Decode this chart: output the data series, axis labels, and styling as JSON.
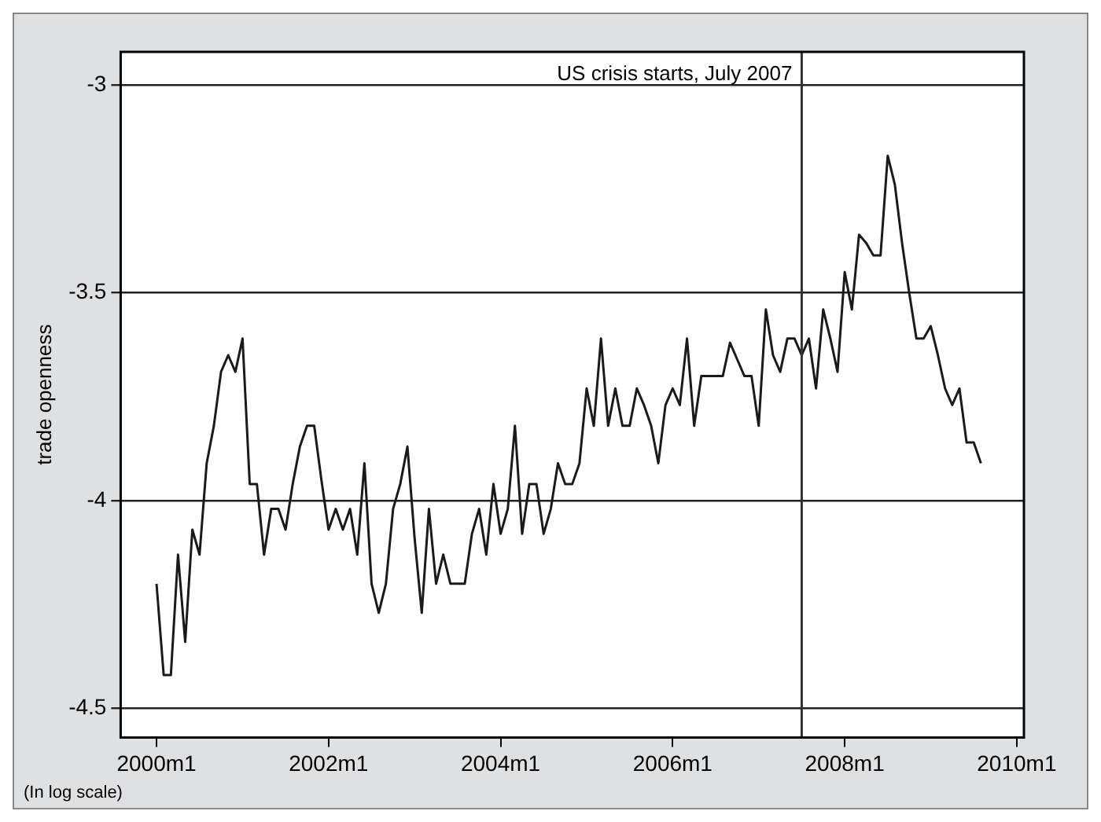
{
  "chart_data": {
    "type": "line",
    "ylabel": "trade openness",
    "x": [
      "2000-01",
      "2000-02",
      "2000-03",
      "2000-04",
      "2000-05",
      "2000-06",
      "2000-07",
      "2000-08",
      "2000-09",
      "2000-10",
      "2000-11",
      "2000-12",
      "2001-01",
      "2001-02",
      "2001-03",
      "2001-04",
      "2001-05",
      "2001-06",
      "2001-07",
      "2001-08",
      "2001-09",
      "2001-10",
      "2001-11",
      "2001-12",
      "2002-01",
      "2002-02",
      "2002-03",
      "2002-04",
      "2002-05",
      "2002-06",
      "2002-07",
      "2002-08",
      "2002-09",
      "2002-10",
      "2002-11",
      "2002-12",
      "2003-01",
      "2003-02",
      "2003-03",
      "2003-04",
      "2003-05",
      "2003-06",
      "2003-07",
      "2003-08",
      "2003-09",
      "2003-10",
      "2003-11",
      "2003-12",
      "2004-01",
      "2004-02",
      "2004-03",
      "2004-04",
      "2004-05",
      "2004-06",
      "2004-07",
      "2004-08",
      "2004-09",
      "2004-10",
      "2004-11",
      "2004-12",
      "2005-01",
      "2005-02",
      "2005-03",
      "2005-04",
      "2005-05",
      "2005-06",
      "2005-07",
      "2005-08",
      "2005-09",
      "2005-10",
      "2005-11",
      "2005-12",
      "2006-01",
      "2006-02",
      "2006-03",
      "2006-04",
      "2006-05",
      "2006-06",
      "2006-07",
      "2006-08",
      "2006-09",
      "2006-10",
      "2006-11",
      "2006-12",
      "2007-01",
      "2007-02",
      "2007-03",
      "2007-04",
      "2007-05",
      "2007-06",
      "2007-07",
      "2007-08",
      "2007-09",
      "2007-10",
      "2007-11",
      "2007-12",
      "2008-01",
      "2008-02",
      "2008-03",
      "2008-04",
      "2008-05",
      "2008-06",
      "2008-07",
      "2008-08",
      "2008-09",
      "2008-10",
      "2008-11",
      "2008-12",
      "2009-01",
      "2009-02",
      "2009-03",
      "2009-04",
      "2009-05",
      "2009-06",
      "2009-07",
      "2009-08"
    ],
    "series": [
      {
        "color": "#1a1a1a",
        "values": [
          -4.2,
          -4.42,
          -4.42,
          -4.13,
          -4.34,
          -4.07,
          -4.13,
          -3.91,
          -3.82,
          -3.69,
          -3.65,
          -3.69,
          -3.61,
          -3.96,
          -3.96,
          -4.13,
          -4.02,
          -4.02,
          -4.07,
          -3.96,
          -3.87,
          -3.82,
          -3.82,
          -3.95,
          -4.07,
          -4.02,
          -4.07,
          -4.02,
          -4.13,
          -3.91,
          -4.2,
          -4.27,
          -4.2,
          -4.02,
          -3.96,
          -3.87,
          -4.09,
          -4.27,
          -4.02,
          -4.2,
          -4.13,
          -4.2,
          -4.2,
          -4.2,
          -4.08,
          -4.02,
          -4.13,
          -3.96,
          -4.08,
          -4.02,
          -3.82,
          -4.08,
          -3.96,
          -3.96,
          -4.08,
          -4.02,
          -3.91,
          -3.96,
          -3.96,
          -3.91,
          -3.73,
          -3.82,
          -3.61,
          -3.82,
          -3.73,
          -3.82,
          -3.82,
          -3.73,
          -3.77,
          -3.82,
          -3.91,
          -3.77,
          -3.73,
          -3.77,
          -3.61,
          -3.82,
          -3.7,
          -3.7,
          -3.7,
          -3.7,
          -3.62,
          -3.66,
          -3.7,
          -3.7,
          -3.82,
          -3.54,
          -3.65,
          -3.69,
          -3.61,
          -3.61,
          -3.65,
          -3.61,
          -3.73,
          -3.54,
          -3.61,
          -3.69,
          -3.45,
          -3.54,
          -3.36,
          -3.38,
          -3.41,
          -3.41,
          -3.17,
          -3.24,
          -3.38,
          -3.5,
          -3.61,
          -3.61,
          -3.58,
          -3.65,
          -3.73,
          -3.77,
          -3.73,
          -3.86,
          -3.86,
          -3.91
        ]
      }
    ],
    "xlim": [
      "1999-08",
      "2010-02"
    ],
    "xticks": [
      {
        "value": "2000-01",
        "label": "2000m1"
      },
      {
        "value": "2002-01",
        "label": "2002m1"
      },
      {
        "value": "2004-01",
        "label": "2004m1"
      },
      {
        "value": "2006-01",
        "label": "2006m1"
      },
      {
        "value": "2008-01",
        "label": "2008m1"
      },
      {
        "value": "2010-01",
        "label": "2010m1"
      }
    ],
    "ylim": [
      -4.57,
      -2.92
    ],
    "yticks": [
      -4.5,
      -4,
      -3.5,
      -3
    ],
    "grid": "y",
    "marker": "none",
    "line_style": "solid",
    "ref_lines": [
      {
        "axis": "x",
        "value": "2007-07",
        "label": "US crisis starts, July 2007",
        "color": "#333333"
      }
    ],
    "annotations": [
      "(In log scale)"
    ]
  }
}
